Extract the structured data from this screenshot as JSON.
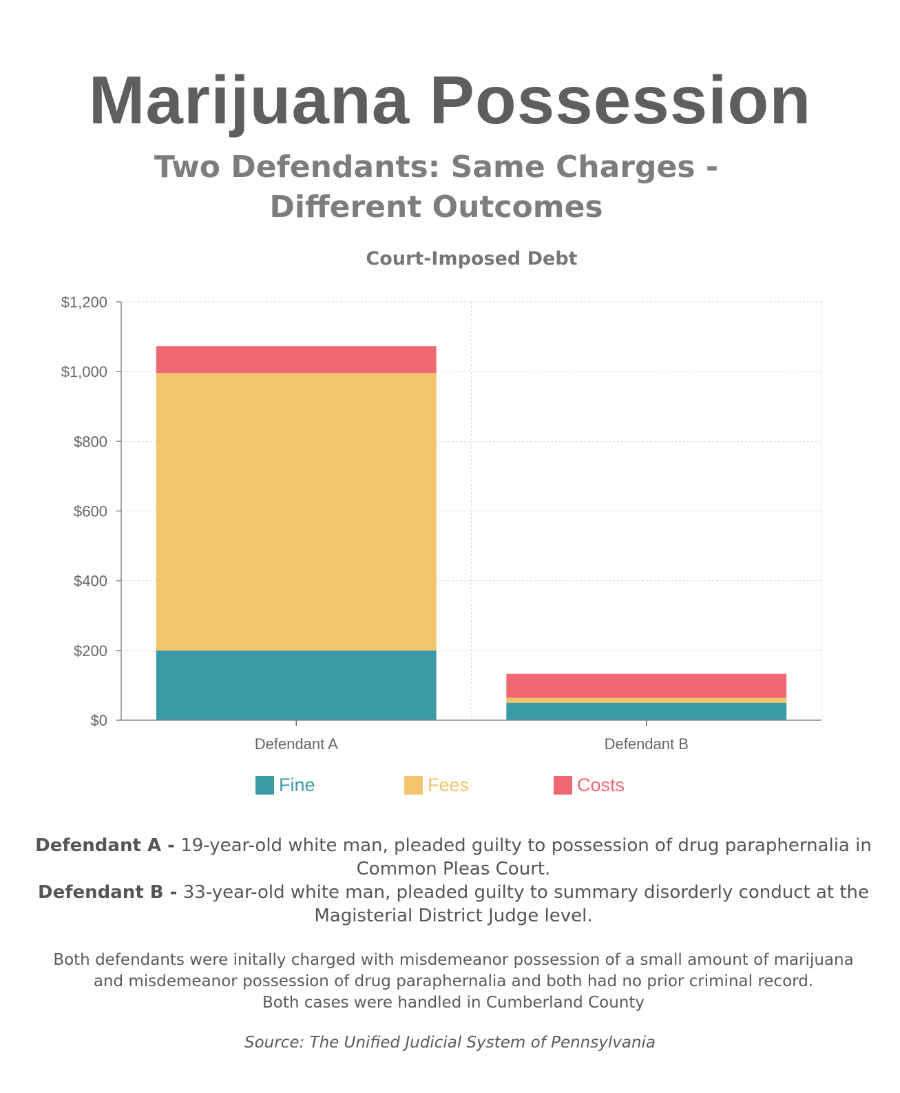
{
  "header": {
    "title": "Marijuana Possession",
    "subtitle": "Two Defendants: Same Charges - Different Outcomes"
  },
  "chart_data": {
    "type": "bar",
    "stacked": true,
    "title": "Court-Imposed Debt",
    "categories": [
      "Defendant A",
      "Defendant B"
    ],
    "series": [
      {
        "name": "Fine",
        "color": "#3a9aa5",
        "values": [
          200,
          50
        ]
      },
      {
        "name": "Fees",
        "color": "#f2c46b",
        "values": [
          796,
          14
        ]
      },
      {
        "name": "Costs",
        "color": "#f06872",
        "values": [
          77,
          69
        ]
      }
    ],
    "ylim": [
      0,
      1200
    ],
    "yticks": [
      0,
      200,
      400,
      600,
      800,
      1000,
      1200
    ],
    "ytick_labels": [
      "$0",
      "$200",
      "$400",
      "$600",
      "$800",
      "$1,000",
      "$1,200"
    ],
    "xlabel": "",
    "ylabel": "",
    "grid": true,
    "legend_position": "bottom"
  },
  "descriptions": {
    "a_label": "Defendant A -",
    "a_text": "19-year-old white man, pleaded guilty to possession of drug paraphernalia in Common Pleas Court.",
    "b_label": "Defendant B -",
    "b_text": "33-year-old white man, pleaded guilty to summary disorderly conduct at the Magisterial District Judge level."
  },
  "note": {
    "line1": "Both defendants were initally charged with misdemeanor possession of a small amount of marijuana",
    "line2": "and misdemeanor possession of drug paraphernalia and both had no prior criminal record.",
    "line3": "Both cases were handled in Cumberland County"
  },
  "source": "Source: The Unified Judicial System of Pennsylvania"
}
